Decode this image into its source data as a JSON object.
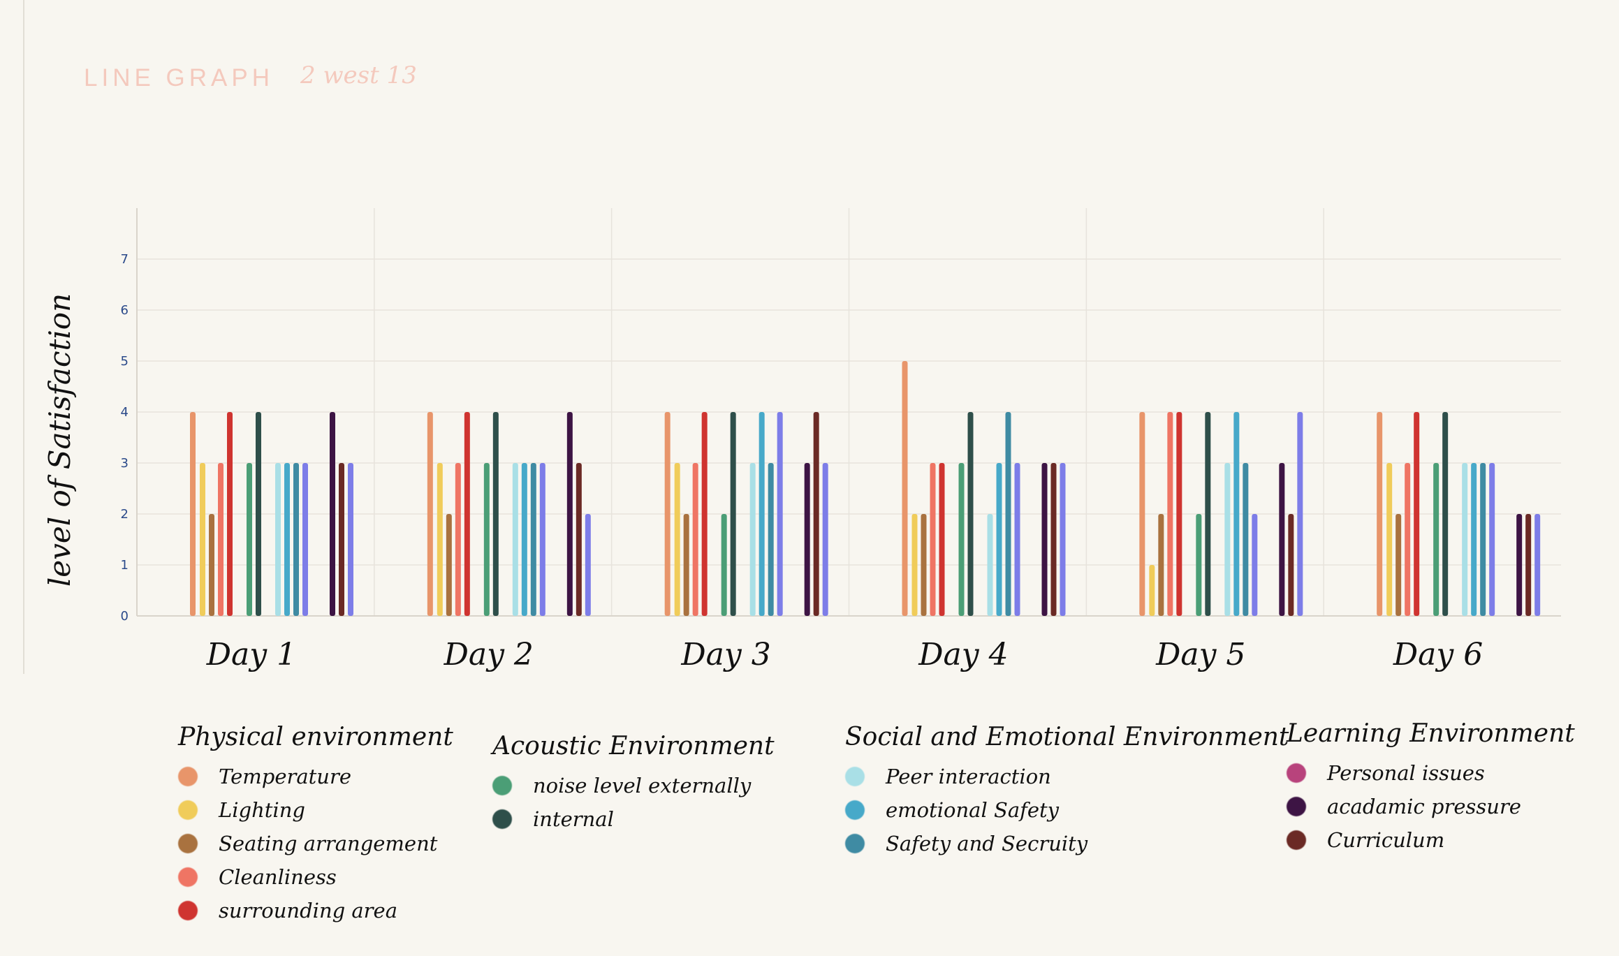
{
  "header": {
    "title": "LINE GRAPH",
    "note": "2   west 13"
  },
  "chart_data": {
    "type": "bar",
    "ylabel": "level of Satisfaction",
    "ylim": [
      0,
      8
    ],
    "yticks": [
      0,
      1,
      2,
      3,
      4,
      5,
      6,
      7
    ],
    "grid": true,
    "categories": [
      "Day 1",
      "Day 2",
      "Day 3",
      "Day 4",
      "Day 5",
      "Day 6"
    ],
    "series": [
      {
        "name": "Temperature",
        "color": "#e8956a",
        "values": [
          4,
          4,
          4,
          5,
          4,
          4
        ]
      },
      {
        "name": "Lighting",
        "color": "#f0cc5a",
        "values": [
          3,
          3,
          3,
          2,
          1,
          3
        ]
      },
      {
        "name": "Seating arrangement",
        "color": "#a9723f",
        "values": [
          2,
          2,
          2,
          2,
          2,
          2
        ]
      },
      {
        "name": "Cleanliness",
        "color": "#ef7564",
        "values": [
          3,
          3,
          3,
          3,
          4,
          3
        ]
      },
      {
        "name": "surrounding area",
        "color": "#cf3430",
        "values": [
          4,
          4,
          4,
          3,
          4,
          4
        ]
      },
      {
        "name": "noise level externally",
        "color": "#4b9e76",
        "values": [
          3,
          3,
          2,
          3,
          2,
          3
        ]
      },
      {
        "name": "internal",
        "color": "#2e4f4a",
        "values": [
          4,
          4,
          4,
          4,
          4,
          4
        ]
      },
      {
        "name": "Peer interaction",
        "color": "#a9dfe6",
        "values": [
          3,
          3,
          3,
          2,
          3,
          3
        ]
      },
      {
        "name": "emotional Safety",
        "color": "#47a9c9",
        "values": [
          3,
          3,
          4,
          3,
          4,
          3
        ]
      },
      {
        "name": "Safety and Secruity",
        "color": "#3f8ba3",
        "values": [
          3,
          3,
          3,
          4,
          3,
          3
        ]
      },
      {
        "name": "",
        "color": "#7d7de8",
        "values": [
          3,
          3,
          4,
          3,
          2,
          3
        ]
      },
      {
        "name": "acadamic pressure",
        "color": "#3d1444",
        "values": [
          4,
          4,
          3,
          3,
          3,
          2
        ]
      },
      {
        "name": "Curriculum",
        "color": "#6b2a25",
        "values": [
          3,
          3,
          4,
          3,
          2,
          2
        ]
      },
      {
        "name": "",
        "color": "#7d7de8",
        "values": [
          3,
          2,
          3,
          3,
          4,
          2
        ]
      }
    ]
  },
  "legend": [
    {
      "heading": "Physical environment",
      "items": [
        {
          "label": "Temperature",
          "color": "#e8956a"
        },
        {
          "label": "Lighting",
          "color": "#f0cc5a"
        },
        {
          "label": "Seating arrangement",
          "color": "#a9723f"
        },
        {
          "label": "Cleanliness",
          "color": "#ef7564"
        },
        {
          "label": "surrounding area",
          "color": "#cf3430"
        }
      ]
    },
    {
      "heading": "Acoustic Environment",
      "items": [
        {
          "label": "noise level externally",
          "color": "#4b9e76"
        },
        {
          "label": "internal",
          "color": "#2e4f4a"
        }
      ]
    },
    {
      "heading": "Social and Emotional Environment",
      "items": [
        {
          "label": "Peer interaction",
          "color": "#a9dfe6"
        },
        {
          "label": "emotional Safety",
          "color": "#47a9c9"
        },
        {
          "label": "Safety and Secruity",
          "color": "#3f8ba3"
        }
      ]
    },
    {
      "heading": "Learning Environment",
      "items": [
        {
          "label": "Personal issues",
          "color": "#b8437c"
        },
        {
          "label": "acadamic pressure",
          "color": "#3d1444"
        },
        {
          "label": "Curriculum",
          "color": "#6b2a25"
        }
      ]
    }
  ]
}
